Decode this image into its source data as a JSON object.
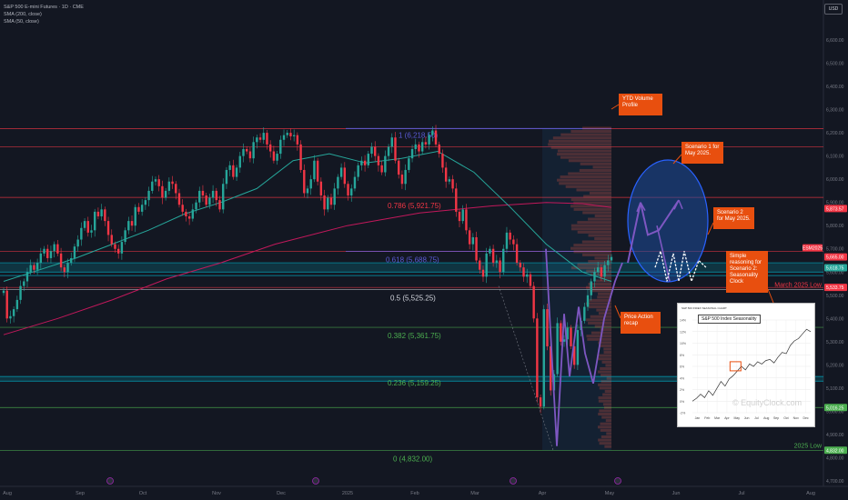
{
  "header": {
    "symbol_line": "S&P 500 E-mini Futures · 1D · CME",
    "sma200": "SMA (200, close)",
    "sma50": "SMA (50, close)",
    "currency_button": "USD"
  },
  "chart_data": {
    "type": "candlestick",
    "title": "S&P 500 E-mini Futures · 1D · CME",
    "y_range": [
      4700,
      6600
    ],
    "y_ticks": [
      4700,
      4800,
      4900,
      5000,
      5100,
      5200,
      5300,
      5400,
      5500,
      5600,
      5700,
      5800,
      5900,
      6000,
      6100,
      6200,
      6300,
      6400,
      6500,
      6600
    ],
    "y_tick_labels": [
      "4,700.00",
      "4,800.00",
      "4,900.00",
      "5,000.00",
      "5,100.00",
      "5,200.00",
      "5,300.00",
      "5,400.00",
      "5,500.00",
      "5,600.00",
      "5,700.00",
      "5,800.00",
      "5,900.00",
      "6,000.00",
      "6,100.00",
      "6,200.00",
      "6,300.00",
      "6,400.00",
      "6,500.00",
      "6,600.00"
    ],
    "x_labels": [
      "Aug",
      "Sep",
      "Oct",
      "Nov",
      "Dec",
      "2025",
      "Feb",
      "Mar",
      "Apr",
      "May",
      "Jun",
      "Jul",
      "Aug"
    ],
    "fib_levels": [
      {
        "ratio": "1",
        "price": 6218.5,
        "label": "1 (6,218.50)",
        "color": "#5b5bd6"
      },
      {
        "ratio": "0.786",
        "price": 5921.75,
        "label": "0.786 (5,921.75)",
        "color": "#f23645"
      },
      {
        "ratio": "0.618",
        "price": 5688.75,
        "label": "0.618 (5,688.75)",
        "color": "#5b5bd6"
      },
      {
        "ratio": "0.5",
        "price": 5525.25,
        "label": "0.5 (5,525.25)",
        "color": "#d1d4dc"
      },
      {
        "ratio": "0.382",
        "price": 5361.75,
        "label": "0.382 (5,361.75)",
        "color": "#4caf50"
      },
      {
        "ratio": "0.236",
        "price": 5159.25,
        "label": "0.236 (5,159.25)",
        "color": "#4caf50"
      },
      {
        "ratio": "0",
        "price": 4832.0,
        "label": "0 (4,832.00)",
        "color": "#4caf50"
      }
    ],
    "price_tags": [
      {
        "label": "5,873.57",
        "price": 5873.57,
        "color": "#f23645"
      },
      {
        "label": "ESM2025",
        "price": 5665,
        "color": "#f23645"
      },
      {
        "label": "5,665.00",
        "price": 5665,
        "color": "#f23645"
      },
      {
        "label": "5,618.75",
        "price": 5618.75,
        "color": "#26a69a"
      },
      {
        "label": "5,533.75",
        "price": 5533.75,
        "color": "#f23645"
      },
      {
        "label": "5,016.25",
        "price": 5016.25,
        "color": "#4caf50"
      },
      {
        "label": "4,832.00",
        "price": 4832,
        "color": "#4caf50"
      }
    ],
    "line_labels": [
      {
        "text": "March 2025 Low",
        "price": 5525,
        "color": "#f23645"
      },
      {
        "text": "2025 Low",
        "price": 4832,
        "color": "#4caf50"
      }
    ],
    "sma200": [
      [
        0,
        5330
      ],
      [
        60,
        5400
      ],
      [
        120,
        5480
      ],
      [
        180,
        5570
      ],
      [
        240,
        5640
      ],
      [
        300,
        5720
      ],
      [
        380,
        5800
      ],
      [
        460,
        5855
      ],
      [
        540,
        5885
      ],
      [
        600,
        5900
      ],
      [
        640,
        5895
      ],
      [
        672,
        5878
      ]
    ],
    "sma50": [
      [
        0,
        5560
      ],
      [
        40,
        5610
      ],
      [
        80,
        5660
      ],
      [
        120,
        5720
      ],
      [
        160,
        5780
      ],
      [
        200,
        5850
      ],
      [
        240,
        5900
      ],
      [
        280,
        5960
      ],
      [
        320,
        6080
      ],
      [
        360,
        6110
      ],
      [
        400,
        6070
      ],
      [
        440,
        6090
      ],
      [
        480,
        6120
      ],
      [
        520,
        6030
      ],
      [
        560,
        5880
      ],
      [
        600,
        5720
      ],
      [
        640,
        5600
      ],
      [
        672,
        5560
      ]
    ],
    "candles_close": [
      5520,
      5400,
      5410,
      5440,
      5480,
      5540,
      5560,
      5600,
      5630,
      5610,
      5640,
      5680,
      5700,
      5660,
      5690,
      5720,
      5680,
      5620,
      5600,
      5640,
      5660,
      5710,
      5740,
      5790,
      5820,
      5770,
      5780,
      5860,
      5840,
      5870,
      5820,
      5760,
      5720,
      5700,
      5680,
      5730,
      5780,
      5820,
      5800,
      5880,
      5860,
      5890,
      5910,
      5950,
      5990,
      6000,
      5970,
      5920,
      5950,
      5990,
      5980,
      5940,
      5890,
      5860,
      5840,
      5830,
      5870,
      5900,
      5950,
      5930,
      5890,
      5920,
      5950,
      5910,
      5870,
      5980,
      6040,
      6060,
      6010,
      6050,
      6100,
      6130,
      6120,
      6090,
      6160,
      6180,
      6170,
      6200,
      6150,
      6120,
      6080,
      6110,
      6170,
      6190,
      6200,
      6185,
      6190,
      6150,
      6040,
      5940,
      5960,
      6000,
      6080,
      5990,
      5930,
      5870,
      5920,
      5890,
      5960,
      6010,
      6050,
      5980,
      5930,
      5960,
      6010,
      6060,
      6080,
      6060,
      6110,
      6140,
      6100,
      6060,
      6030,
      6100,
      6140,
      6180,
      6080,
      6020,
      5980,
      6040,
      6090,
      6130,
      6150,
      6120,
      6160,
      6150,
      6190,
      6210,
      6150,
      6110,
      6050,
      5990,
      6000,
      5960,
      5860,
      5820,
      5870,
      5780,
      5720,
      5750,
      5650,
      5610,
      5580,
      5680,
      5700,
      5640,
      5650,
      5600,
      5700,
      5770,
      5740,
      5720,
      5640,
      5620,
      5580,
      5590,
      5540,
      5400,
      5060,
      5020,
      5440,
      5280,
      5090,
      5160,
      5380,
      5300,
      5310,
      5360,
      5280,
      5200,
      5350,
      5390,
      5450,
      5500,
      5560,
      5600,
      5620,
      5580,
      5630,
      5650,
      5665
    ],
    "volume_profile": "YTD Volume Profile shown on right side of price",
    "annotations": [
      {
        "label": "YTD Volume Profile"
      },
      {
        "label": "Scenario 1 for May 2025."
      },
      {
        "label": "Scenario 2 for May 2025."
      },
      {
        "label": "Simple reasoning for Scenario 2: Seasonality Clock"
      },
      {
        "label": "Price Action recap"
      }
    ],
    "inset": {
      "caption": "S&P 500 INDEX SEASONAL CHART",
      "heading": "S&P 500 Index Seasonality",
      "watermark": "© EquityClock.com",
      "months": [
        "Jan",
        "Feb",
        "Mar",
        "Apr",
        "May",
        "Jun",
        "Jul",
        "Aug",
        "Sep",
        "Oct",
        "Nov",
        "Dec"
      ],
      "y_labels": [
        "14%",
        "12%",
        "10%",
        "8%",
        "6%",
        "4%",
        "2%",
        "0%",
        "-2%"
      ],
      "values": [
        0,
        0.5,
        1.2,
        0.6,
        1.8,
        1.0,
        2.2,
        3.4,
        2.6,
        3.8,
        4.4,
        5.2,
        6.0,
        5.4,
        6.4,
        6.0,
        6.8,
        6.4,
        7.0,
        7.2,
        6.6,
        7.6,
        8.4,
        8.2,
        9.6,
        10.4,
        10.8,
        11.6,
        12.4,
        12.0
      ]
    }
  },
  "callouts": {
    "ytd_volume": "YTD Volume Profile",
    "scenario1": "Scenario 1 for May 2025.",
    "scenario2": "Scenario 2 for May 2025.",
    "seasonality": "Simple reasoning for Scenario 2: Seasonality Clock",
    "price_action": "Price Action recap"
  },
  "colors": {
    "background": "#131722",
    "bull": "#26a69a",
    "bear": "#f23645",
    "sma200": "#c2185b",
    "sma50": "#26a69a",
    "callout": "#e84f0f",
    "ellipse_fill": "#1e4d9c",
    "scenario1_arrow": "#7e57c2",
    "scenario2_path": "#ffffff"
  }
}
